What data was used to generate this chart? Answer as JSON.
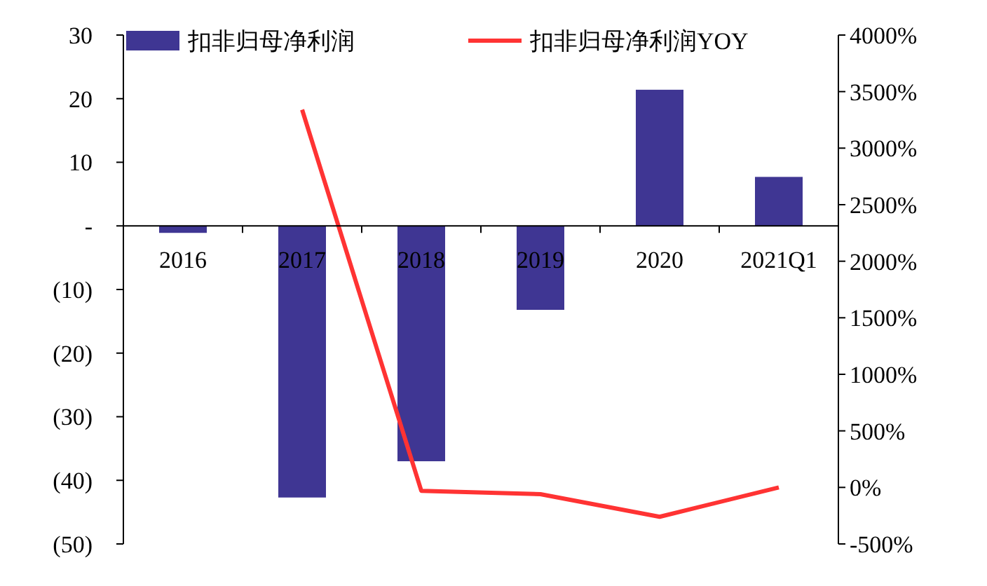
{
  "chart_data": {
    "type": "bar",
    "categories": [
      "2016",
      "2017",
      "2018",
      "2019",
      "2020",
      "2021Q1"
    ],
    "series": [
      {
        "name": "扣非归母净利润",
        "color": "#3f3693",
        "values": [
          -1.1,
          -42.7,
          -37,
          -13.2,
          21.4,
          7.7
        ]
      },
      {
        "name": "扣非归母净利润YOY",
        "type": "line",
        "axis": "y2",
        "color": "#ff3333",
        "values": [
          null,
          3340,
          -30,
          -60,
          -260,
          0
        ]
      }
    ],
    "ylim": [
      -50,
      30
    ],
    "yticks": [
      {
        "value": -50,
        "label": "(50)"
      },
      {
        "value": -40,
        "label": "(40)"
      },
      {
        "value": -30,
        "label": "(30)"
      },
      {
        "value": -20,
        "label": "(20)"
      },
      {
        "value": -10,
        "label": "(10)"
      },
      {
        "value": 0,
        "label": "-"
      },
      10,
      20,
      30
    ],
    "y2lim": [
      -500,
      4000
    ],
    "y2ticks": [
      {
        "value": -500,
        "label": "-500%"
      },
      {
        "value": 0,
        "label": "0%"
      },
      {
        "value": 500,
        "label": "500%"
      },
      {
        "value": 1000,
        "label": "1000%"
      },
      {
        "value": 1500,
        "label": "1500%"
      },
      {
        "value": 2000,
        "label": "2000%"
      },
      {
        "value": 2500,
        "label": "2500%"
      },
      {
        "value": 3000,
        "label": "3000%"
      },
      {
        "value": 3500,
        "label": "3500%"
      },
      {
        "value": 4000,
        "label": "4000%"
      }
    ],
    "legend": "top",
    "grid": false
  }
}
